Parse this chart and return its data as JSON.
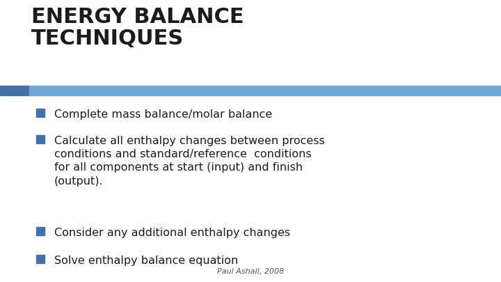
{
  "title_line1": "ENERGY BALANCE",
  "title_line2": "TECHNIQUES",
  "title_color": "#1c1c1c",
  "title_fontsize": 22,
  "title_fontweight": "bold",
  "bar_color": "#6fa8d5",
  "bar_left_color": "#4472a8",
  "background_color": "#ffffff",
  "bullet_color": "#1c1c1c",
  "bullet_square_color": "#4472a8",
  "bullet_points": [
    "Complete mass balance/molar balance",
    "Calculate all enthalpy changes between process\nconditions and standard/reference  conditions\nfor all components at start (input) and finish\n(output).",
    "Consider any additional enthalpy changes",
    "Solve enthalpy balance equation"
  ],
  "bullet_fontsize": 11.5,
  "footer_text": "Paul Ashall, 2008",
  "footer_fontsize": 8,
  "footer_color": "#555555"
}
